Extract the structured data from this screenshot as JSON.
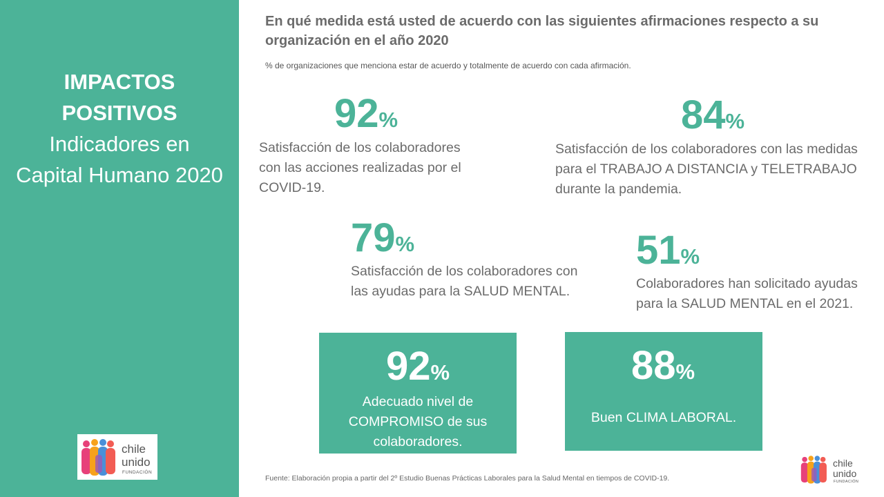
{
  "sidebar": {
    "title_bold": [
      "IMPACTOS",
      "POSITIVOS"
    ],
    "title_light": [
      "Indicadores en",
      "Capital Humano 2020"
    ]
  },
  "header": {
    "title_line1": "En qué medida está usted de acuerdo con las siguientes afirmaciones respecto a su",
    "title_line2": "organización en el año 2020",
    "subtitle": "% de organizaciones que menciona estar de acuerdo y totalmente de acuerdo con cada afirmación."
  },
  "stats": [
    {
      "value": "92",
      "unit": "%",
      "desc": [
        "Satisfacción de los colaboradores",
        "con las acciones realizadas por el",
        "COVID-19."
      ]
    },
    {
      "value": "84",
      "unit": "%",
      "desc": [
        "Satisfacción de los colaboradores con las medidas",
        "para el TRABAJO A DISTANCIA  y TELETRABAJO",
        "durante la pandemia."
      ]
    },
    {
      "value": "79",
      "unit": "%",
      "desc": [
        "Satisfacción de los colaboradores con",
        "las ayudas para la  SALUD MENTAL."
      ]
    },
    {
      "value": "51",
      "unit": "%",
      "desc": [
        "Colaboradores han solicitado ayudas",
        "para la  SALUD MENTAL en el 2021."
      ]
    }
  ],
  "boxes": [
    {
      "value": "92",
      "unit": "%",
      "desc": [
        "Adecuado nivel de",
        "COMPROMISO de sus",
        "colaboradores."
      ]
    },
    {
      "value": "88",
      "unit": "%",
      "desc": [
        "Buen CLIMA LABORAL."
      ]
    }
  ],
  "logo": {
    "line1": "chile",
    "line2": "unido",
    "line3": "FUNDACIÓN"
  },
  "source": "Fuente: Elaboración propia a partir del 2º Estudio Buenas Prácticas Laborales para la Salud Mental en tiempos de COVID-19.",
  "colors": {
    "accent": "#4cb398",
    "text": "#6b6b6b"
  }
}
